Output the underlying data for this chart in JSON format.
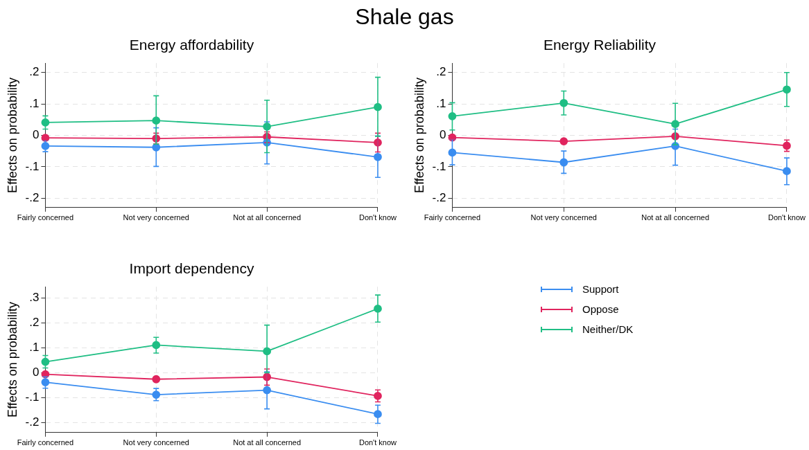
{
  "chart_data": [
    {
      "type": "line",
      "annotations": [
        "Shale gas"
      ],
      "title": "Energy affordability",
      "ylabel": "Effects on probability",
      "categories": [
        "Fairly concerned",
        "Not very concerned",
        "Not at all concerned",
        "Don't know"
      ],
      "ylim": [
        -0.23,
        0.23
      ],
      "yticks": [
        {
          "value": -0.2,
          "label": "-.2"
        },
        {
          "value": -0.1,
          "label": "-.1"
        },
        {
          "value": 0,
          "label": "0"
        },
        {
          "value": 0.1,
          "label": ".1"
        },
        {
          "value": 0.2,
          "label": ".2"
        }
      ],
      "grid": true,
      "marker": "circle",
      "line_style": "solid",
      "series": [
        {
          "color": "#3a8df0",
          "values": [
            -0.034,
            -0.038,
            -0.023,
            -0.069
          ],
          "errors": [
            [
              -0.052,
              -0.016
            ],
            [
              -0.099,
              0.024
            ],
            [
              -0.091,
              0.043
            ],
            [
              -0.134,
              -0.002
            ]
          ]
        },
        {
          "color": "#e0245e",
          "values": [
            -0.008,
            -0.01,
            -0.005,
            -0.023
          ],
          "errors": [
            [
              -0.015,
              -0.002
            ],
            [
              -0.027,
              0.007
            ],
            [
              -0.023,
              0.011
            ],
            [
              -0.053,
              0.007
            ]
          ]
        },
        {
          "color": "#1fbe84",
          "values": [
            0.041,
            0.047,
            0.028,
            0.09
          ],
          "errors": [
            [
              0.02,
              0.062
            ],
            [
              -0.028,
              0.126
            ],
            [
              -0.055,
              0.112
            ],
            [
              -0.003,
              0.185
            ]
          ]
        }
      ]
    },
    {
      "type": "line",
      "title": "Energy Reliability",
      "ylabel": "Effects on probability",
      "categories": [
        "Fairly concerned",
        "Not very concerned",
        "Not at all concerned",
        "Don't know"
      ],
      "ylim": [
        -0.23,
        0.23
      ],
      "yticks": [
        {
          "value": -0.2,
          "label": "-.2"
        },
        {
          "value": -0.1,
          "label": "-.1"
        },
        {
          "value": 0,
          "label": "0"
        },
        {
          "value": 0.1,
          "label": ".1"
        },
        {
          "value": 0.2,
          "label": ".2"
        }
      ],
      "grid": true,
      "marker": "circle",
      "line_style": "solid",
      "series": [
        {
          "color": "#3a8df0",
          "values": [
            -0.055,
            -0.086,
            -0.034,
            -0.114
          ],
          "errors": [
            [
              -0.094,
              -0.013
            ],
            [
              -0.121,
              -0.05
            ],
            [
              -0.095,
              0.02
            ],
            [
              -0.157,
              -0.072
            ]
          ]
        },
        {
          "color": "#e0245e",
          "values": [
            -0.007,
            -0.019,
            -0.003,
            -0.033
          ],
          "errors": [
            [
              -0.012,
              -0.002
            ],
            [
              -0.025,
              -0.013
            ],
            [
              -0.008,
              0.002
            ],
            [
              -0.051,
              -0.015
            ]
          ]
        },
        {
          "color": "#1fbe84",
          "values": [
            0.061,
            0.103,
            0.036,
            0.146
          ],
          "errors": [
            [
              0.017,
              0.104
            ],
            [
              0.065,
              0.141
            ],
            [
              -0.03,
              0.102
            ],
            [
              0.092,
              0.2
            ]
          ]
        }
      ]
    },
    {
      "type": "line",
      "title": "Import dependency",
      "ylabel": "Effects on probability",
      "categories": [
        "Fairly concerned",
        "Not very concerned",
        "Not at all concerned",
        "Don't know"
      ],
      "ylim": [
        -0.24,
        0.345
      ],
      "yticks": [
        {
          "value": -0.2,
          "label": "-.2"
        },
        {
          "value": -0.1,
          "label": "-.1"
        },
        {
          "value": 0,
          "label": "0"
        },
        {
          "value": 0.1,
          "label": ".1"
        },
        {
          "value": 0.2,
          "label": ".2"
        },
        {
          "value": 0.3,
          "label": ".3"
        }
      ],
      "grid": true,
      "marker": "circle",
      "line_style": "solid",
      "legend": "right",
      "series": [
        {
          "name": "Support",
          "color": "#3a8df0",
          "values": [
            -0.038,
            -0.088,
            -0.07,
            -0.166
          ],
          "errors": [
            [
              -0.062,
              -0.016
            ],
            [
              -0.112,
              -0.063
            ],
            [
              -0.145,
              0.004
            ],
            [
              -0.203,
              -0.13
            ]
          ]
        },
        {
          "name": "Oppose",
          "color": "#e0245e",
          "values": [
            -0.006,
            -0.026,
            -0.017,
            -0.093
          ],
          "errors": [
            [
              -0.012,
              0
            ],
            [
              -0.032,
              -0.019
            ],
            [
              -0.05,
              0.015
            ],
            [
              -0.117,
              -0.069
            ]
          ]
        },
        {
          "name": "Neither/DK",
          "color": "#1fbe84",
          "values": [
            0.044,
            0.111,
            0.086,
            0.257
          ],
          "errors": [
            [
              0.019,
              0.069
            ],
            [
              0.079,
              0.142
            ],
            [
              0,
              0.191
            ],
            [
              0.203,
              0.312
            ]
          ]
        }
      ]
    }
  ]
}
